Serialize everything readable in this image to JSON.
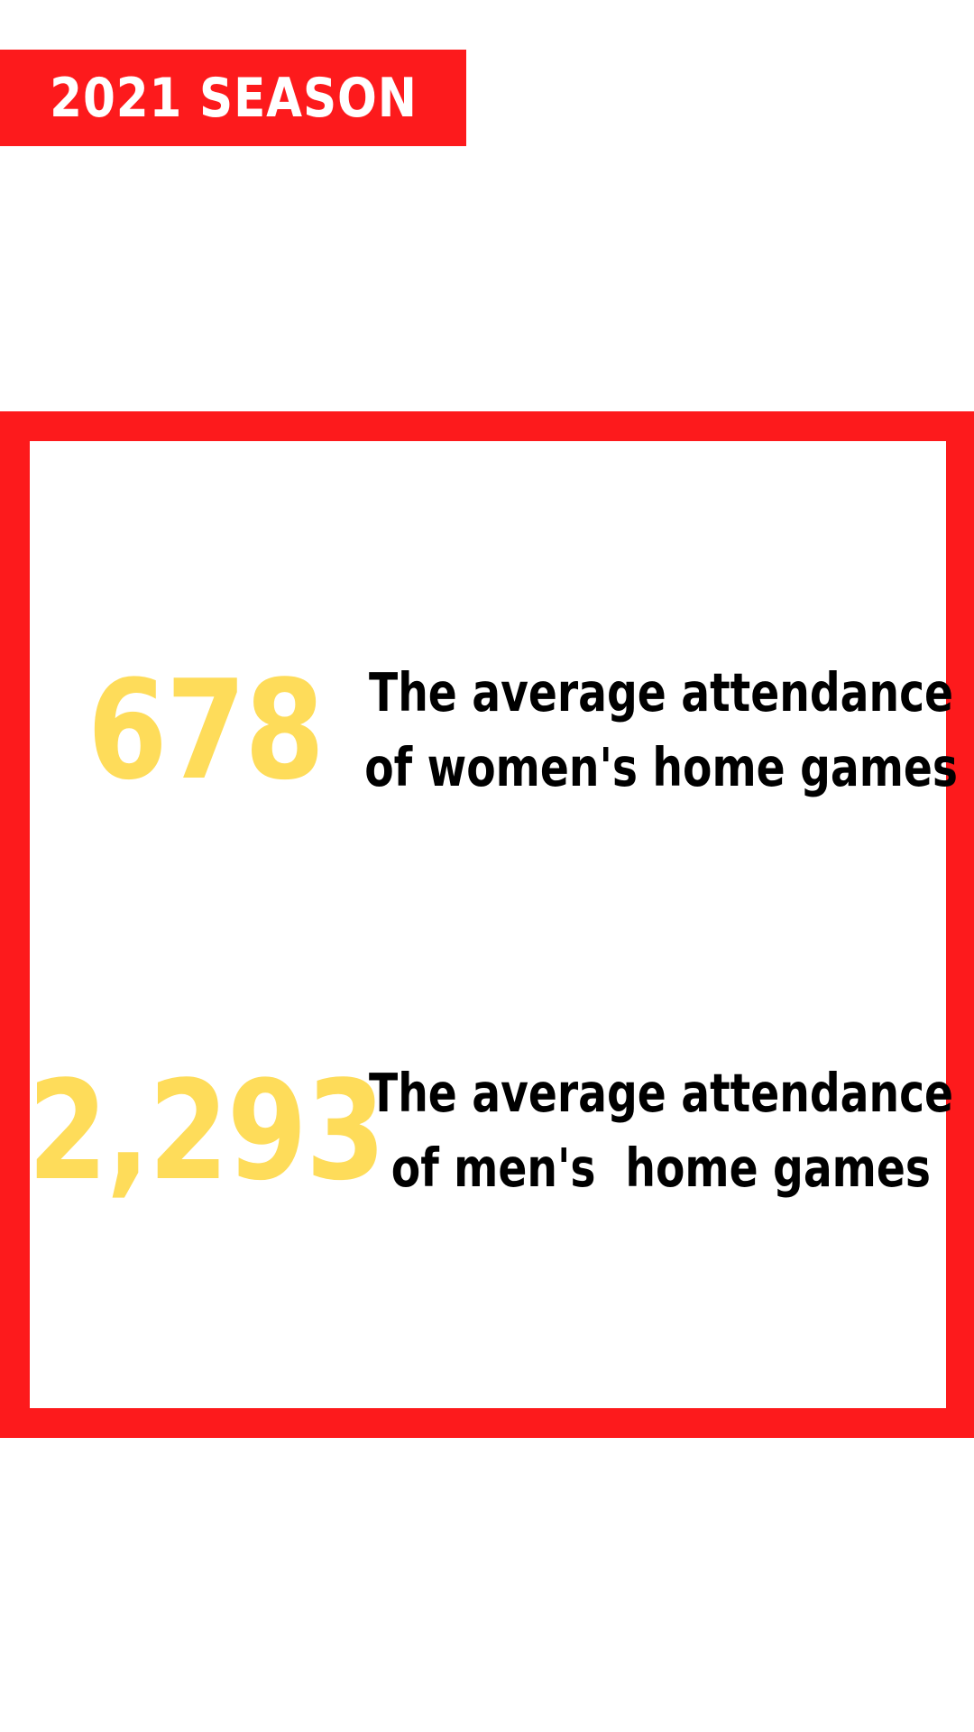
{
  "banner": {
    "title": "2021 SEASON"
  },
  "stats": [
    {
      "value": "678",
      "line1": "The average attendance",
      "line2": "of women's home games"
    },
    {
      "value": "2,293",
      "line1": "The average attendance",
      "line2": "of men's  home games"
    }
  ],
  "colors": {
    "accent_red": "#fd1a1c",
    "number_yellow": "#fedc5a",
    "text_black": "#000000",
    "background": "#ffffff"
  }
}
